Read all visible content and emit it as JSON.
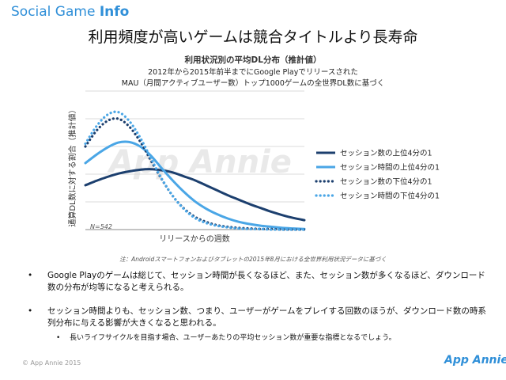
{
  "brand": {
    "text_light": "Social Game",
    "text_bold": "Info"
  },
  "headline": "利用頻度が高いゲームは競合タイトルより長寿命",
  "chart_data": {
    "type": "line",
    "title": "利用状況別の平均DL分布（推計値）",
    "subtitle_lines": [
      "2012年から2015年前半までにGoogle Playでリリースされた",
      "MAU（月間アクティブユーザー数）トップ1000ゲームの全世界DL数に基づく"
    ],
    "xlabel": "リリースからの週数",
    "ylabel": "通算DL数に対する割合（推計値）",
    "annotation": "N=542",
    "watermark": "App Annie",
    "grid": true,
    "legend_position": "right",
    "x": [
      0,
      1,
      2,
      3,
      4,
      5,
      6,
      7,
      8,
      9,
      10,
      11,
      12,
      13,
      14,
      15,
      16,
      17,
      18,
      19,
      20
    ],
    "series": [
      {
        "name": "セッション数の上位4分の1",
        "color": "#1c3f6e",
        "style": "solid",
        "values": [
          0.08,
          0.088,
          0.095,
          0.101,
          0.105,
          0.108,
          0.109,
          0.107,
          0.103,
          0.096,
          0.089,
          0.08,
          0.071,
          0.062,
          0.054,
          0.046,
          0.039,
          0.032,
          0.026,
          0.021,
          0.017
        ]
      },
      {
        "name": "セッション時間の上位4分の1",
        "color": "#4aa6e6",
        "style": "solid",
        "values": [
          0.12,
          0.135,
          0.148,
          0.157,
          0.158,
          0.15,
          0.133,
          0.11,
          0.088,
          0.068,
          0.051,
          0.038,
          0.028,
          0.02,
          0.014,
          0.01,
          0.007,
          0.005,
          0.003,
          0.002,
          0.001
        ]
      },
      {
        "name": "セッション数の下位4分の1",
        "color": "#1c3f6e",
        "style": "dotted",
        "values": [
          0.15,
          0.178,
          0.196,
          0.2,
          0.186,
          0.159,
          0.124,
          0.09,
          0.06,
          0.038,
          0.023,
          0.014,
          0.008,
          0.005,
          0.003,
          0.002,
          0.001,
          0.001,
          0.0,
          0.0,
          0.0
        ]
      },
      {
        "name": "セッション時間の下位4分の1",
        "color": "#4aa6e6",
        "style": "dotted",
        "values": [
          0.155,
          0.186,
          0.207,
          0.212,
          0.196,
          0.166,
          0.128,
          0.091,
          0.06,
          0.037,
          0.021,
          0.012,
          0.007,
          0.004,
          0.002,
          0.001,
          0.001,
          0.0,
          0.0,
          0.0,
          0.0
        ]
      }
    ],
    "ylim": [
      0,
      0.25
    ]
  },
  "footnote": "注：Androidスマートフォンおよびタブレットの2015年8月における全世界利用状況データに基づく",
  "bullets": [
    {
      "marker": "•",
      "text": "Google Playのゲームは総じて、セッション時間が長くなるほど、また、セッション数が多くなるほど、ダウンロード数の分布が均等になると考えられる。"
    },
    {
      "marker": "•",
      "text": "セッション時間よりも、セッション数、つまり、ユーザーがゲームをプレイする回数のほうが、ダウンロード数の時系列分布に与える影響が大きくなると思われる。"
    },
    {
      "marker": "•",
      "text": "長いライフサイクルを目指す場合、ユーザーあたりの平均セッション数が重要な指標となるでしょう。"
    }
  ],
  "copyright": "© App Annie 2015",
  "logo": "App Annie"
}
